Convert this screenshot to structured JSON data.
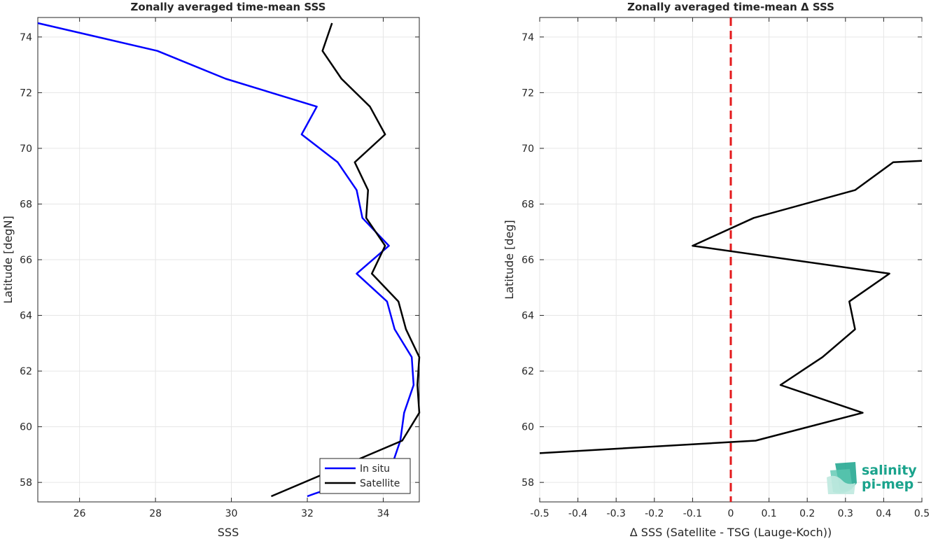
{
  "chart_data": [
    {
      "type": "line",
      "title": "Zonally averaged time-mean SSS",
      "xlabel": "SSS",
      "ylabel": "Latitude [degN]",
      "xlim": [
        24.9,
        34.95
      ],
      "ylim": [
        57.3,
        74.7
      ],
      "xticks": [
        26,
        28,
        30,
        32,
        34
      ],
      "yticks": [
        58,
        60,
        62,
        64,
        66,
        68,
        70,
        72,
        74
      ],
      "grid": true,
      "legend": "bottom-right",
      "series": [
        {
          "name": "In situ",
          "color": "#0000ff",
          "x": [
            24.9,
            28.05,
            29.85,
            32.25,
            31.85,
            32.8,
            33.3,
            33.45,
            34.15,
            33.3,
            34.1,
            34.3,
            34.75,
            34.8,
            34.55,
            34.45,
            34.2,
            32.2,
            32.0
          ],
          "y": [
            74.5,
            73.5,
            72.5,
            71.5,
            70.5,
            69.5,
            68.5,
            67.5,
            66.5,
            65.5,
            64.5,
            63.5,
            62.5,
            61.5,
            60.5,
            59.5,
            58.5,
            57.6,
            57.5
          ]
        },
        {
          "name": "Satellite",
          "color": "#000000",
          "x": [
            32.65,
            32.4,
            32.9,
            33.65,
            34.05,
            33.25,
            33.6,
            33.55,
            34.05,
            33.7,
            34.4,
            34.6,
            34.95,
            34.9,
            34.95,
            34.5,
            31.05
          ],
          "y": [
            74.5,
            73.5,
            72.5,
            71.5,
            70.5,
            69.5,
            68.5,
            67.5,
            66.5,
            65.5,
            64.5,
            63.5,
            62.5,
            61.5,
            60.5,
            59.5,
            57.5
          ]
        }
      ]
    },
    {
      "type": "line",
      "title": "Zonally averaged time-mean Δ SSS",
      "xlabel": "Δ SSS (Satellite - TSG (Lauge-Koch))",
      "ylabel": "Latitude [deg]",
      "xlim": [
        -0.5,
        0.5
      ],
      "ylim": [
        57.3,
        74.7
      ],
      "xticks": [
        -0.5,
        -0.4,
        -0.3,
        -0.2,
        -0.1,
        0,
        0.1,
        0.2,
        0.3,
        0.4,
        0.5
      ],
      "xticklabels": [
        "-0.5",
        "-0.4",
        "-0.3",
        "-0.2",
        "-0.1",
        "0",
        "0.1",
        "0.2",
        "0.3",
        "0.4",
        "0.5"
      ],
      "yticks": [
        58,
        60,
        62,
        64,
        66,
        68,
        70,
        72,
        74
      ],
      "grid": true,
      "zero_line": {
        "x": 0,
        "color": "#e41a1c",
        "style": "dashed"
      },
      "series": [
        {
          "name": "",
          "color": "#000000",
          "x": [
            0.5,
            0.425,
            0.325,
            0.06,
            -0.1,
            0.415,
            0.31,
            0.325,
            0.24,
            0.13,
            0.345,
            0.065,
            -0.5
          ],
          "y": [
            69.55,
            69.5,
            68.5,
            67.5,
            66.5,
            65.5,
            64.5,
            63.5,
            62.5,
            61.5,
            60.5,
            59.5,
            59.05
          ]
        }
      ]
    }
  ],
  "logo": {
    "line1": "salinity",
    "line2": "pi-mep",
    "color": "#1aa38c"
  }
}
